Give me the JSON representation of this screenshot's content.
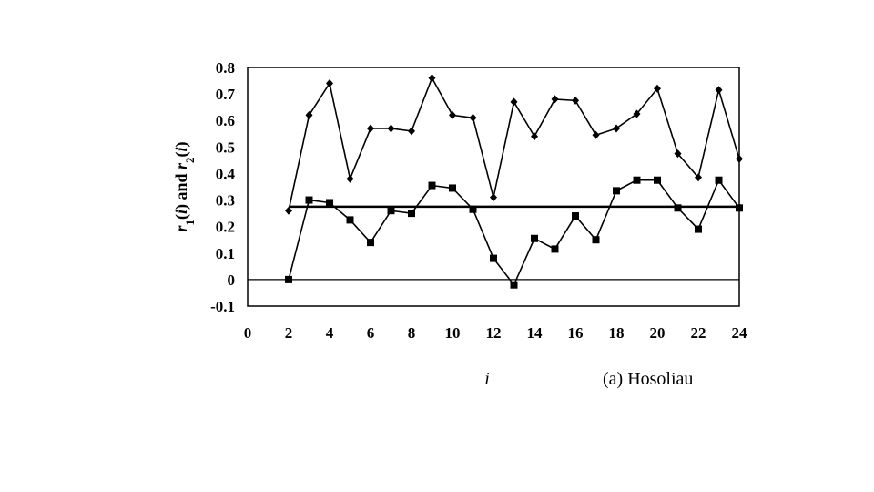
{
  "chart_data": {
    "type": "line",
    "caption": "(a) Hosoliau",
    "xlabel": "i",
    "ylabel_parts": {
      "r1": "r",
      "sub1": "1",
      "open1": "(",
      "i1": "i",
      "close1": ")",
      "mid": " and ",
      "r2": "r",
      "sub2": "2",
      "open2": "(",
      "i2": "i",
      "close2": ")"
    },
    "xlim": [
      0,
      24
    ],
    "ylim": [
      -0.1,
      0.8
    ],
    "x_ticks": [
      "0",
      "2",
      "4",
      "6",
      "8",
      "10",
      "12",
      "14",
      "16",
      "18",
      "20",
      "22",
      "24"
    ],
    "y_ticks": [
      "0.8",
      "0.7",
      "0.6",
      "0.5",
      "0.4",
      "0.3",
      "0.2",
      "0.1",
      "0",
      "-0.1"
    ],
    "x": [
      2,
      3,
      4,
      5,
      6,
      7,
      8,
      9,
      10,
      11,
      12,
      13,
      14,
      15,
      16,
      17,
      18,
      19,
      20,
      21,
      22,
      23,
      24
    ],
    "series": [
      {
        "marker": "diamond",
        "values": [
          0.26,
          0.62,
          0.74,
          0.38,
          0.57,
          0.57,
          0.56,
          0.76,
          0.62,
          0.61,
          0.31,
          0.67,
          0.54,
          0.68,
          0.675,
          0.545,
          0.57,
          0.625,
          0.72,
          0.475,
          0.385,
          0.715,
          0.455
        ]
      },
      {
        "marker": "square",
        "values": [
          0.0,
          0.3,
          0.29,
          0.225,
          0.14,
          0.26,
          0.25,
          0.355,
          0.345,
          0.265,
          0.08,
          -0.02,
          0.155,
          0.115,
          0.24,
          0.15,
          0.335,
          0.375,
          0.375,
          0.27,
          0.19,
          0.375,
          0.27
        ]
      }
    ],
    "reference_lines": [
      {
        "y": 0.275,
        "x_start": 2,
        "x_end": 24
      },
      {
        "y": 0,
        "x_start": 0,
        "x_end": 24
      }
    ],
    "grid": false,
    "legend": "none",
    "colors": {
      "line": "#000000",
      "background": "#ffffff"
    }
  }
}
